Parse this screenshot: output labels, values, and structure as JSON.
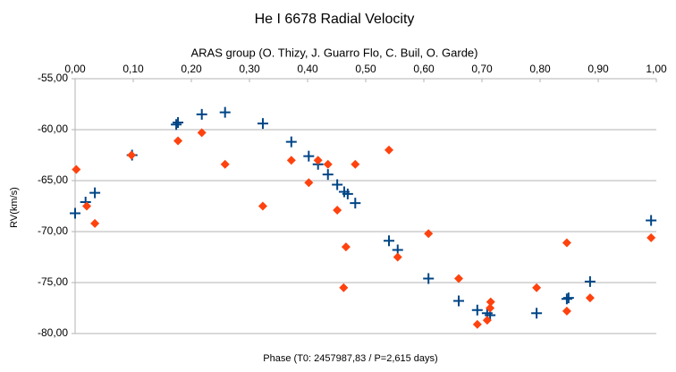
{
  "chart_data": {
    "type": "scatter",
    "title": "He I 6678 Radial Velocity",
    "subtitle": "ARAS group (O. Thizy, J. Guarro Flo, C. Buil, O. Garde)",
    "x_label": "Phase (T0: 2457987,83 / P=2,615 days)",
    "y_label": "RV(km/s)",
    "xlim": [
      0,
      1
    ],
    "ylim": [
      -80,
      -55
    ],
    "x_axis_position": "top",
    "grid": true,
    "xticks": [
      {
        "value": 0,
        "label": "0,00"
      },
      {
        "value": 0.1,
        "label": "0,10"
      },
      {
        "value": 0.2,
        "label": "0,20"
      },
      {
        "value": 0.3,
        "label": "0,30"
      },
      {
        "value": 0.4,
        "label": "0,40"
      },
      {
        "value": 0.5,
        "label": "0,50"
      },
      {
        "value": 0.6,
        "label": "0,60"
      },
      {
        "value": 0.7,
        "label": "0,70"
      },
      {
        "value": 0.8,
        "label": "0,80"
      },
      {
        "value": 0.9,
        "label": "0,90"
      },
      {
        "value": 1,
        "label": "1,00"
      }
    ],
    "yticks": [
      {
        "value": -55,
        "label": "-55,00"
      },
      {
        "value": -60,
        "label": "-60,00"
      },
      {
        "value": -65,
        "label": "-65,00"
      },
      {
        "value": -70,
        "label": "-70,00"
      },
      {
        "value": -75,
        "label": "-75,00"
      },
      {
        "value": -80,
        "label": "-80,00"
      }
    ],
    "series": [
      {
        "color": "#004586",
        "marker": "plus",
        "x": [
          0,
          0.018,
          0.034,
          0.098,
          0.174,
          0.177,
          0.218,
          0.258,
          0.323,
          0.372,
          0.402,
          0.418,
          0.435,
          0.451,
          0.463,
          0.469,
          0.482,
          0.54,
          0.555,
          0.608,
          0.66,
          0.692,
          0.709,
          0.714,
          0.794,
          0.846,
          0.849,
          0.886,
          0.991
        ],
        "values": [
          -68.2,
          -67.1,
          -66.2,
          -62.5,
          -59.5,
          -59.3,
          -58.5,
          -58.3,
          -59.4,
          -61.2,
          -62.6,
          -63.4,
          -64.4,
          -65.4,
          -66.1,
          -66.3,
          -67.2,
          -70.9,
          -71.8,
          -74.6,
          -76.8,
          -77.7,
          -78.0,
          -78.2,
          -78.0,
          -76.6,
          -76.5,
          -74.9,
          -68.9
        ]
      },
      {
        "color": "#ff420e",
        "marker": "diamond",
        "x": [
          0.002,
          0.02,
          0.034,
          0.097,
          0.177,
          0.218,
          0.258,
          0.323,
          0.372,
          0.402,
          0.418,
          0.435,
          0.451,
          0.466,
          0.462,
          0.482,
          0.54,
          0.555,
          0.608,
          0.66,
          0.692,
          0.709,
          0.714,
          0.715,
          0.794,
          0.846,
          0.846,
          0.886,
          0.991
        ],
        "values": [
          -63.9,
          -67.5,
          -69.2,
          -62.5,
          -61.1,
          -60.3,
          -63.4,
          -67.5,
          -63.0,
          -65.2,
          -63.0,
          -63.4,
          -67.9,
          -71.5,
          -75.5,
          -63.4,
          -62.0,
          -72.5,
          -70.2,
          -74.6,
          -79.1,
          -78.7,
          -77.5,
          -76.9,
          -75.5,
          -71.1,
          -77.8,
          -76.5,
          -70.6
        ]
      }
    ]
  }
}
